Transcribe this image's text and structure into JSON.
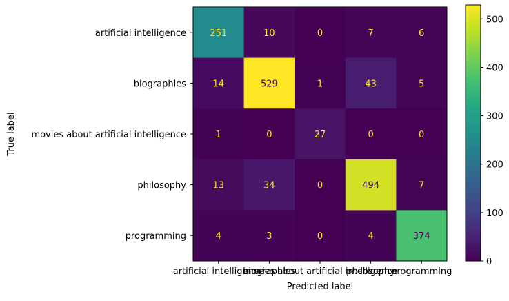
{
  "chart_data": {
    "type": "heatmap",
    "title": "",
    "xlabel": "Predicted label",
    "ylabel": "True label",
    "x_categories": [
      "artificial intelligence",
      "biographies",
      "movies about artificial intelligence",
      "philosophy",
      "programming"
    ],
    "y_categories": [
      "artificial intelligence",
      "biographies",
      "movies about artificial intelligence",
      "philosophy",
      "programming"
    ],
    "values": [
      [
        251,
        10,
        0,
        7,
        6
      ],
      [
        14,
        529,
        1,
        43,
        5
      ],
      [
        1,
        0,
        27,
        0,
        0
      ],
      [
        13,
        34,
        0,
        494,
        7
      ],
      [
        4,
        3,
        0,
        4,
        374
      ]
    ],
    "colormap": "viridis",
    "colorbar": {
      "range": [
        0,
        529
      ],
      "ticks": [
        0,
        100,
        200,
        300,
        400,
        500
      ]
    },
    "text_colors": {
      "light": "#fde725",
      "dark": "#440154"
    }
  }
}
